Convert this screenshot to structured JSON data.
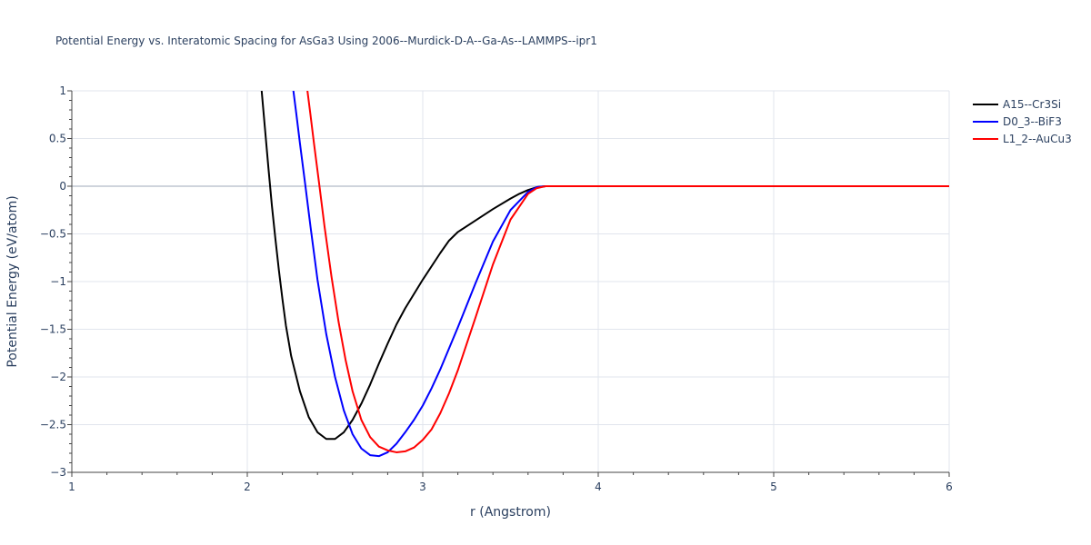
{
  "chart_data": {
    "type": "line",
    "title": "Potential Energy vs. Interatomic Spacing for AsGa3 Using 2006--Murdick-D-A--Ga-As--LAMMPS--ipr1",
    "xlabel": "r (Angstrom)",
    "ylabel": "Potential Energy (eV/atom)",
    "xlim": [
      1,
      6
    ],
    "ylim": [
      -3,
      1
    ],
    "xticks": [
      1,
      2,
      3,
      4,
      5,
      6
    ],
    "xtick_labels": [
      "1",
      "2",
      "3",
      "4",
      "5",
      "6"
    ],
    "yticks": [
      1,
      0.5,
      0,
      -0.5,
      -1,
      -1.5,
      -2,
      -2.5,
      -3
    ],
    "ytick_labels": [
      "1",
      "0.5",
      "0",
      "−0.5",
      "−1",
      "−1.5",
      "−2",
      "−2.5",
      "−3"
    ],
    "grid": true,
    "legend_position": "top-right",
    "series": [
      {
        "name": "A15--Cr3Si",
        "color": "#000000",
        "x": [
          2.08,
          2.1,
          2.12,
          2.14,
          2.16,
          2.18,
          2.2,
          2.22,
          2.25,
          2.3,
          2.35,
          2.4,
          2.45,
          2.5,
          2.55,
          2.6,
          2.65,
          2.7,
          2.75,
          2.8,
          2.85,
          2.9,
          3.0,
          3.1,
          3.15,
          3.2,
          3.3,
          3.4,
          3.5,
          3.55,
          3.6,
          3.65,
          3.7,
          4.0,
          5.0,
          6.0
        ],
        "y": [
          1.04,
          0.62,
          0.2,
          -0.2,
          -0.55,
          -0.88,
          -1.18,
          -1.46,
          -1.78,
          -2.15,
          -2.42,
          -2.58,
          -2.65,
          -2.65,
          -2.58,
          -2.45,
          -2.28,
          -2.08,
          -1.86,
          -1.65,
          -1.45,
          -1.28,
          -0.98,
          -0.7,
          -0.57,
          -0.48,
          -0.36,
          -0.24,
          -0.13,
          -0.08,
          -0.04,
          -0.01,
          0.0,
          0.0,
          0.0,
          0.0
        ]
      },
      {
        "name": "D0_3--BiF3",
        "color": "#0000ff",
        "x": [
          2.26,
          2.28,
          2.3,
          2.33,
          2.36,
          2.4,
          2.45,
          2.5,
          2.55,
          2.6,
          2.65,
          2.7,
          2.75,
          2.8,
          2.85,
          2.9,
          2.95,
          3.0,
          3.05,
          3.1,
          3.2,
          3.3,
          3.4,
          3.5,
          3.6,
          3.65,
          3.7,
          4.0,
          5.0,
          6.0
        ],
        "y": [
          1.04,
          0.75,
          0.45,
          0.02,
          -0.42,
          -0.98,
          -1.55,
          -2.0,
          -2.35,
          -2.6,
          -2.75,
          -2.82,
          -2.83,
          -2.79,
          -2.7,
          -2.58,
          -2.45,
          -2.3,
          -2.12,
          -1.92,
          -1.48,
          -1.02,
          -0.58,
          -0.25,
          -0.06,
          -0.01,
          0.0,
          0.0,
          0.0,
          0.0
        ]
      },
      {
        "name": "L1_2--AuCu3",
        "color": "#ff0000",
        "x": [
          2.34,
          2.36,
          2.38,
          2.41,
          2.44,
          2.48,
          2.52,
          2.56,
          2.6,
          2.65,
          2.7,
          2.75,
          2.8,
          2.85,
          2.9,
          2.95,
          3.0,
          3.05,
          3.1,
          3.15,
          3.2,
          3.3,
          3.4,
          3.5,
          3.6,
          3.65,
          3.7,
          4.0,
          5.0,
          6.0
        ],
        "y": [
          1.04,
          0.75,
          0.45,
          0.02,
          -0.42,
          -0.95,
          -1.42,
          -1.82,
          -2.15,
          -2.45,
          -2.63,
          -2.73,
          -2.77,
          -2.79,
          -2.78,
          -2.74,
          -2.66,
          -2.55,
          -2.38,
          -2.17,
          -1.93,
          -1.38,
          -0.82,
          -0.35,
          -0.08,
          -0.02,
          0.0,
          0.0,
          0.0,
          0.0
        ]
      }
    ]
  }
}
